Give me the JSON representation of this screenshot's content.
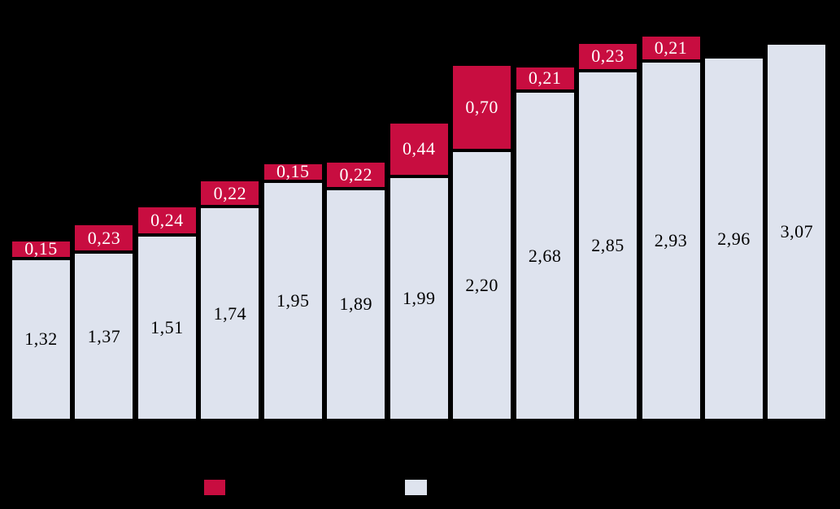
{
  "chart_data": {
    "type": "bar",
    "stacked": true,
    "orientation": "vertical",
    "bar_count": 13,
    "background": "#000000",
    "decimal_separator": ",",
    "value_axis": {
      "visible": false
    },
    "category_axis": {
      "visible": false
    },
    "title": "",
    "series": [
      {
        "name": "base",
        "role": "base-segment",
        "color": "#DEE3EE",
        "label_color": "#000000",
        "values": [
          1.32,
          1.37,
          1.51,
          1.74,
          1.95,
          1.89,
          1.99,
          2.2,
          2.68,
          2.85,
          2.93,
          2.96,
          3.07
        ],
        "labels": [
          "1,32",
          "1,37",
          "1,51",
          "1,74",
          "1,95",
          "1,89",
          "1,99",
          "2,20",
          "2,68",
          "2,85",
          "2,93",
          "2,96",
          "3,07"
        ]
      },
      {
        "name": "increment",
        "role": "top-segment",
        "color": "#C80D40",
        "label_color": "#FFFFFF",
        "values": [
          0.15,
          0.23,
          0.24,
          0.22,
          0.15,
          0.22,
          0.44,
          0.7,
          0.21,
          0.23,
          0.21,
          null,
          null
        ],
        "labels": [
          "0,15",
          "0,23",
          "0,24",
          "0,22",
          "0,15",
          "0,22",
          "0,44",
          "0,70",
          "0,21",
          "0,23",
          "0,21",
          null,
          null
        ]
      }
    ],
    "totals": [
      1.47,
      1.6,
      1.75,
      1.96,
      2.1,
      2.11,
      2.43,
      2.9,
      2.89,
      3.08,
      3.14,
      2.96,
      3.07
    ],
    "legend": {
      "position": "bottom",
      "items": [
        {
          "name": "increment",
          "swatch_color": "#C80D40",
          "label": ""
        },
        {
          "name": "base",
          "swatch_color": "#DEE3EE",
          "label": ""
        }
      ]
    }
  }
}
